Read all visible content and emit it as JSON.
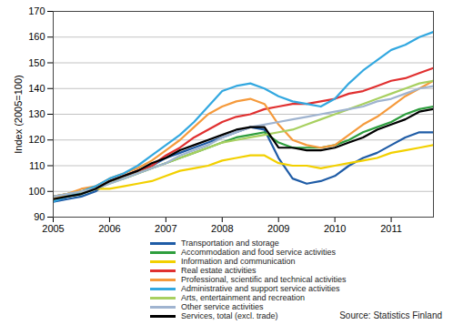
{
  "chart_data": {
    "type": "line",
    "y_label": "Index (2005=100)",
    "caption": "Source: Statistics Finland",
    "x": [
      2005,
      2005.25,
      2005.5,
      2005.75,
      2006,
      2006.25,
      2006.5,
      2006.75,
      2007,
      2007.25,
      2007.5,
      2007.75,
      2008,
      2008.25,
      2008.5,
      2008.75,
      2009,
      2009.25,
      2009.5,
      2009.75,
      2010,
      2010.25,
      2010.5,
      2010.75,
      2011,
      2011.25,
      2011.5,
      2011.75
    ],
    "xlim": [
      2005,
      2011.75
    ],
    "xticks": [
      2005,
      2006,
      2007,
      2008,
      2009,
      2010,
      2011
    ],
    "ylim": [
      90,
      170
    ],
    "yticks": [
      90,
      100,
      110,
      120,
      130,
      140,
      150,
      160,
      170
    ],
    "grid": true,
    "legend": "bottom",
    "series": [
      {
        "name": "Transportation and storage",
        "color": "#1f5ca6",
        "values": [
          96,
          97,
          98,
          100,
          104,
          106,
          108,
          110,
          113,
          115,
          117,
          119,
          121,
          123,
          125,
          124,
          113,
          105,
          103,
          104,
          106,
          110,
          113,
          115,
          118,
          121,
          123,
          123
        ]
      },
      {
        "name": "Accommodation and food service activities",
        "color": "#2e9e3e",
        "values": [
          97,
          98,
          99,
          101,
          104,
          105,
          107,
          109,
          111,
          113,
          115,
          117,
          119,
          121,
          122,
          123,
          119,
          117,
          117,
          117,
          118,
          120,
          123,
          125,
          127,
          130,
          132,
          133
        ]
      },
      {
        "name": "Information and communication",
        "color": "#f2d000",
        "values": [
          98,
          99,
          100,
          101,
          101,
          102,
          103,
          104,
          106,
          108,
          109,
          110,
          112,
          113,
          114,
          114,
          111,
          110,
          110,
          109,
          110,
          111,
          112,
          113,
          115,
          116,
          117,
          118
        ]
      },
      {
        "name": "Real estate activities",
        "color": "#e03030",
        "values": [
          98,
          99,
          100,
          101,
          104,
          106,
          108,
          110,
          114,
          117,
          121,
          124,
          127,
          129,
          130,
          132,
          133,
          134,
          134,
          135,
          136,
          138,
          139,
          141,
          143,
          144,
          146,
          148
        ]
      },
      {
        "name": "Professional, scientific and technical activities",
        "color": "#f59a3c",
        "values": [
          97,
          99,
          101,
          102,
          105,
          107,
          109,
          112,
          116,
          120,
          125,
          130,
          133,
          135,
          136,
          134,
          126,
          120,
          118,
          117,
          118,
          122,
          126,
          129,
          133,
          137,
          140,
          143
        ]
      },
      {
        "name": "Administrative and support service activities",
        "color": "#33a8e0",
        "values": [
          96,
          98,
          100,
          102,
          105,
          107,
          110,
          114,
          118,
          122,
          127,
          133,
          139,
          141,
          142,
          140,
          137,
          135,
          134,
          133,
          136,
          142,
          147,
          151,
          155,
          157,
          160,
          162
        ]
      },
      {
        "name": "Arts, entertainment and recreation",
        "color": "#a8d060",
        "values": [
          98,
          99,
          100,
          101,
          103,
          105,
          107,
          109,
          111,
          113,
          115,
          117,
          119,
          120,
          121,
          122,
          123,
          124,
          126,
          128,
          130,
          132,
          134,
          136,
          138,
          140,
          142,
          143
        ]
      },
      {
        "name": "Other service activities",
        "color": "#a0b4d0",
        "values": [
          98,
          99,
          100,
          101,
          103,
          105,
          107,
          109,
          111,
          114,
          116,
          118,
          121,
          123,
          125,
          126,
          127,
          128,
          129,
          130,
          131,
          132,
          133,
          135,
          136,
          138,
          140,
          141
        ]
      },
      {
        "name": "Services, total (excl. trade)",
        "color": "#000000",
        "values": [
          97,
          98,
          99,
          101,
          104,
          106,
          108,
          111,
          113,
          116,
          118,
          120,
          122,
          124,
          125,
          125,
          117,
          117,
          116,
          116,
          117,
          119,
          121,
          124,
          126,
          128,
          131,
          132
        ]
      }
    ]
  }
}
